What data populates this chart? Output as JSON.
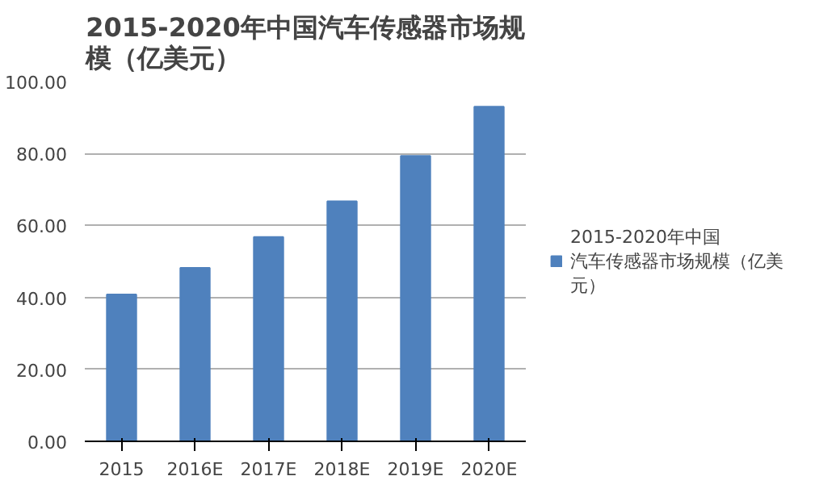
{
  "chart_data": {
    "type": "bar",
    "title": "2015-2020年中国汽车传感器市场规模（亿美元）",
    "categories": [
      "2015",
      "2016E",
      "2017E",
      "2018E",
      "2019E",
      "2020E"
    ],
    "series": [
      {
        "name": "2015-2020年中国汽车传感器市场规模（亿美元）",
        "color": "#4f81bd",
        "values": [
          40.8,
          48.2,
          56.8,
          66.7,
          79.3,
          93.0
        ]
      }
    ],
    "ylim": [
      0,
      100
    ],
    "yticks": [
      {
        "value": 0,
        "label": "0.00"
      },
      {
        "value": 20,
        "label": "20.00"
      },
      {
        "value": 40,
        "label": "40.00"
      },
      {
        "value": 60,
        "label": "60.00"
      },
      {
        "value": 80,
        "label": "80.00"
      },
      {
        "value": 100,
        "label": "100.00"
      }
    ],
    "grid": "y",
    "legend": "right"
  }
}
